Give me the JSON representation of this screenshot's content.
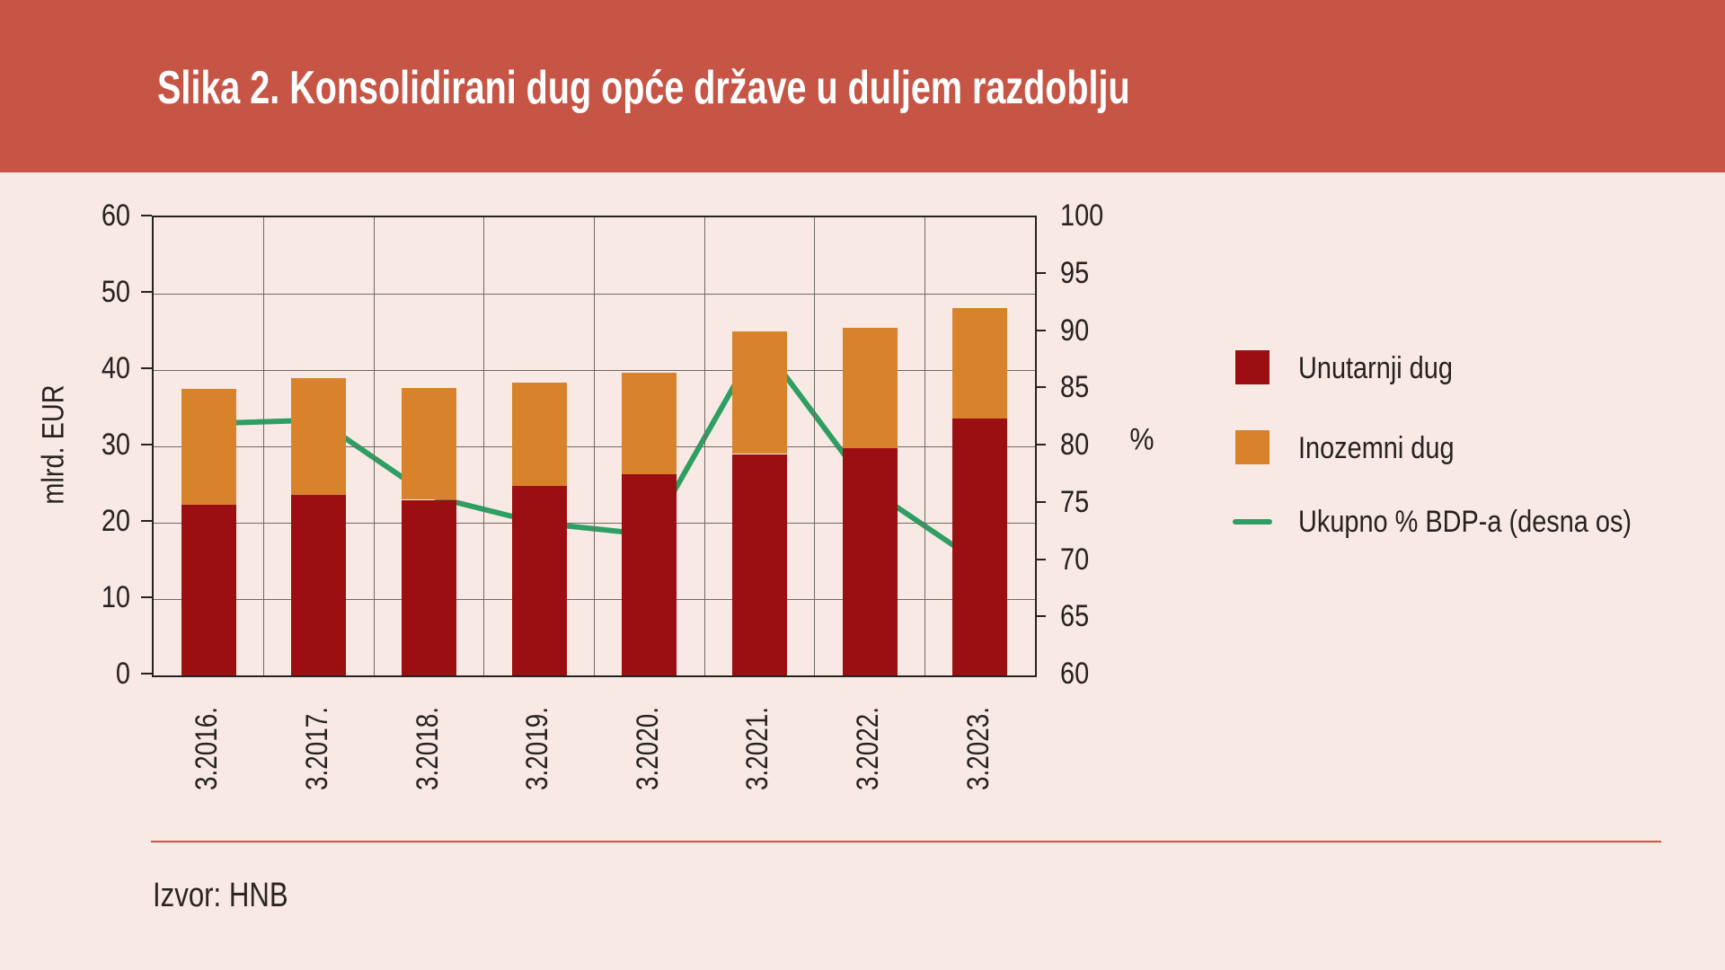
{
  "header": {
    "title": "Slika 2. Konsolidirani dug opće države u duljem razdoblju",
    "background_color": "#c75546"
  },
  "footer": {
    "source": "Izvor: HNB"
  },
  "colors": {
    "page_background": "#f8e9e5",
    "internal_debt": "#9b0e12",
    "foreign_debt": "#d8832c",
    "gdp_line": "#2e9e62",
    "grid": "#6e6a67",
    "axis": "#262220",
    "divider": "#c85441"
  },
  "chart_data": {
    "type": "bar",
    "subtype": "stacked-bars-with-line-overlay",
    "categories": [
      "3.2016.",
      "3.2017.",
      "3.2018.",
      "3.2019.",
      "3.2020.",
      "3.2021.",
      "3.2022.",
      "3.2023."
    ],
    "series": [
      {
        "name": "Unutarnji dug",
        "color": "#9b0e12",
        "axis": "left",
        "values": [
          22.3,
          23.7,
          23.0,
          24.8,
          26.3,
          29.0,
          29.8,
          33.6
        ]
      },
      {
        "name": "Inozemni dug",
        "color": "#d8832c",
        "axis": "left",
        "values": [
          15.2,
          15.3,
          14.6,
          13.5,
          13.3,
          16.1,
          15.7,
          14.5
        ]
      }
    ],
    "stacked_totals": [
      37.5,
      39.0,
      37.6,
      38.3,
      39.6,
      45.1,
      45.5,
      48.1
    ],
    "line": {
      "name": "Ukupno % BDP-a (desna os)",
      "color": "#2e9e62",
      "axis": "right",
      "values": [
        82.0,
        82.3,
        75.7,
        73.3,
        72.3,
        89.2,
        76.3,
        69.8
      ]
    },
    "left_axis": {
      "label": "mlrd. EUR",
      "min": 0,
      "max": 60,
      "tick_step": 10
    },
    "right_axis": {
      "label": "%",
      "min": 60,
      "max": 100,
      "tick_step": 5
    },
    "grid": true,
    "legend_position": "right"
  }
}
